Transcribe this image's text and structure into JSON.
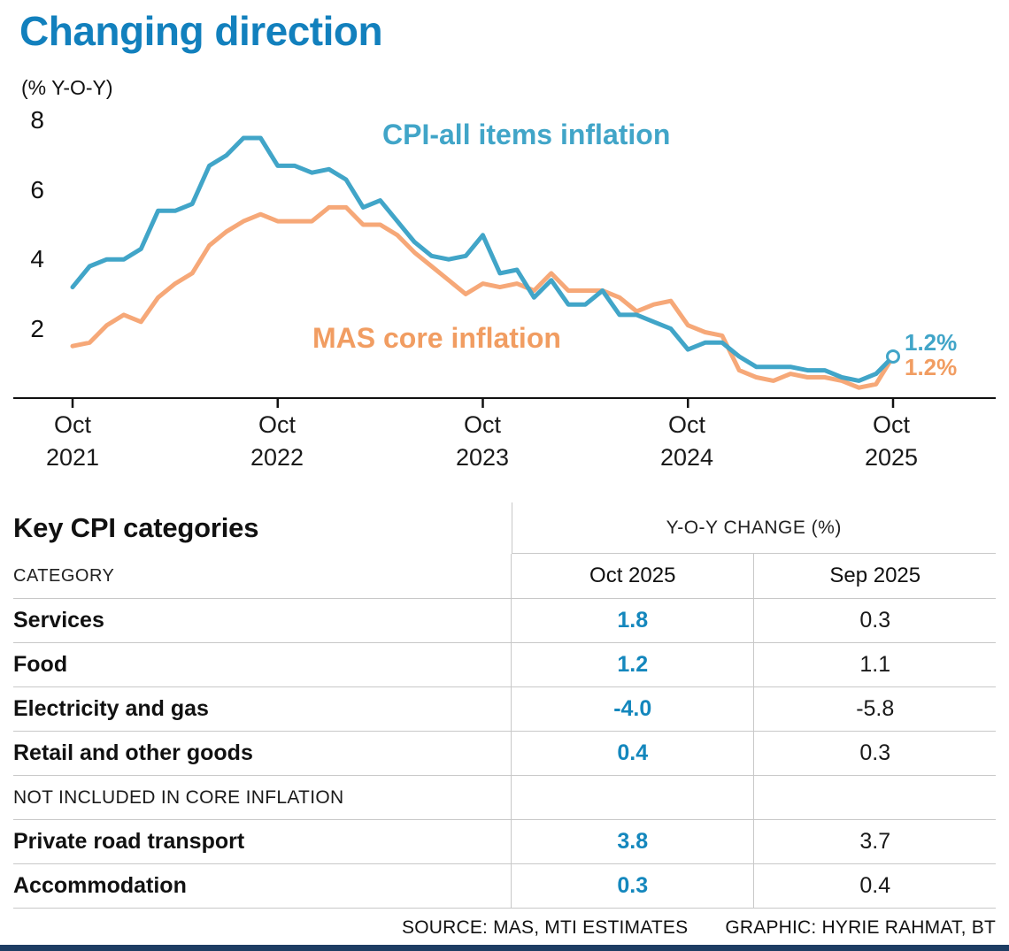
{
  "title": "Changing direction",
  "colors": {
    "title_blue": "#1280bd",
    "line_blue": "#41a5c8",
    "line_orange": "#f6a878",
    "label_orange": "#f19d62",
    "value_blue": "#1487bd",
    "navy_bar": "#1d3d63"
  },
  "chart": {
    "unit_label": "(% Y-O-Y)",
    "y_ticks": [
      "8",
      "6",
      "4",
      "2"
    ],
    "x_ticks": [
      {
        "month": "Oct",
        "year": "2021"
      },
      {
        "month": "Oct",
        "year": "2022"
      },
      {
        "month": "Oct",
        "year": "2023"
      },
      {
        "month": "Oct",
        "year": "2024"
      },
      {
        "month": "Oct",
        "year": "2025"
      }
    ],
    "cpi_label": "CPI-all items inflation",
    "core_label": "MAS core inflation",
    "cpi_end_label": "1.2%",
    "core_end_label": "1.2%"
  },
  "chart_data": {
    "type": "line",
    "title": "Changing direction",
    "ylabel": "(% Y-O-Y)",
    "ylim": [
      0,
      8.5
    ],
    "y_ticks": [
      2,
      4,
      6,
      8
    ],
    "x_frequency": "monthly",
    "x_range": "Oct 2021 - Oct 2025",
    "x_tick_labels": [
      "Oct 2021",
      "Oct 2022",
      "Oct 2023",
      "Oct 2024",
      "Oct 2025"
    ],
    "grid": false,
    "legend_position": "inline-labels",
    "series": [
      {
        "name": "CPI-all items inflation",
        "color": "#41a5c8",
        "end_label": "1.2%",
        "values": [
          3.2,
          3.8,
          4.0,
          4.0,
          4.3,
          5.4,
          5.4,
          5.6,
          6.7,
          7.0,
          7.5,
          7.5,
          6.7,
          6.7,
          6.5,
          6.6,
          6.3,
          5.5,
          5.7,
          5.1,
          4.5,
          4.1,
          4.0,
          4.1,
          4.7,
          3.6,
          3.7,
          2.9,
          3.4,
          2.7,
          2.7,
          3.1,
          2.4,
          2.4,
          2.2,
          2.0,
          1.4,
          1.6,
          1.6,
          1.2,
          0.9,
          0.9,
          0.9,
          0.8,
          0.8,
          0.6,
          0.5,
          0.7,
          1.2
        ]
      },
      {
        "name": "MAS core inflation",
        "color": "#f6a878",
        "end_label": "1.2%",
        "values": [
          1.5,
          1.6,
          2.1,
          2.4,
          2.2,
          2.9,
          3.3,
          3.6,
          4.4,
          4.8,
          5.1,
          5.3,
          5.1,
          5.1,
          5.1,
          5.5,
          5.5,
          5.0,
          5.0,
          4.7,
          4.2,
          3.8,
          3.4,
          3.0,
          3.3,
          3.2,
          3.3,
          3.1,
          3.6,
          3.1,
          3.1,
          3.1,
          2.9,
          2.5,
          2.7,
          2.8,
          2.1,
          1.9,
          1.8,
          0.8,
          0.6,
          0.5,
          0.7,
          0.6,
          0.6,
          0.5,
          0.3,
          0.4,
          1.2
        ]
      }
    ]
  },
  "table": {
    "title": "Key CPI categories",
    "group_header": "Y-O-Y CHANGE (%)",
    "columns": {
      "category": "CATEGORY",
      "oct": "Oct 2025",
      "sep": "Sep 2025"
    },
    "rows": [
      {
        "category": "Services",
        "oct": "1.8",
        "sep": "0.3"
      },
      {
        "category": "Food",
        "oct": "1.2",
        "sep": "1.1"
      },
      {
        "category": "Electricity and gas",
        "oct": "-4.0",
        "sep": "-5.8"
      },
      {
        "category": "Retail and other goods",
        "oct": "0.4",
        "sep": "0.3"
      },
      {
        "category": "Private road transport",
        "oct": "3.8",
        "sep": "3.7"
      },
      {
        "category": "Accommodation",
        "oct": "0.3",
        "sep": "0.4"
      }
    ],
    "section_note": "NOT INCLUDED IN CORE INFLATION"
  },
  "footer": {
    "source": "SOURCE: MAS, MTI ESTIMATES",
    "credit": "GRAPHIC: HYRIE RAHMAT, BT"
  }
}
